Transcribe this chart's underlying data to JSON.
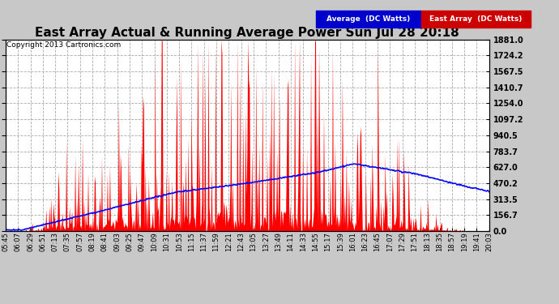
{
  "title": "East Array Actual & Running Average Power Sun Jul 28 20:18",
  "copyright": "Copyright 2013 Cartronics.com",
  "ylabel_right_values": [
    0.0,
    156.7,
    313.5,
    470.2,
    627.0,
    783.7,
    940.5,
    1097.2,
    1254.0,
    1410.7,
    1567.5,
    1724.2,
    1881.0
  ],
  "ymax": 1881.0,
  "ymin": 0.0,
  "x_labels": [
    "05:45",
    "06:07",
    "06:29",
    "06:51",
    "07:13",
    "07:35",
    "07:57",
    "08:19",
    "08:41",
    "09:03",
    "09:25",
    "09:47",
    "10:09",
    "10:31",
    "10:53",
    "11:15",
    "11:37",
    "11:59",
    "12:21",
    "12:43",
    "13:05",
    "13:27",
    "13:49",
    "14:11",
    "14:33",
    "14:55",
    "15:17",
    "15:39",
    "16:01",
    "16:23",
    "16:45",
    "17:07",
    "17:29",
    "17:51",
    "18:13",
    "18:35",
    "18:57",
    "19:19",
    "19:41",
    "20:03"
  ],
  "background_color": "#c8c8c8",
  "plot_bg_color": "#ffffff",
  "grid_color": "#aaaaaa",
  "title_color": "#000000",
  "fill_color": "#ff0000",
  "line_color": "#0000ff",
  "avg_legend_bg": "#0000cc",
  "ea_legend_bg": "#cc0000"
}
